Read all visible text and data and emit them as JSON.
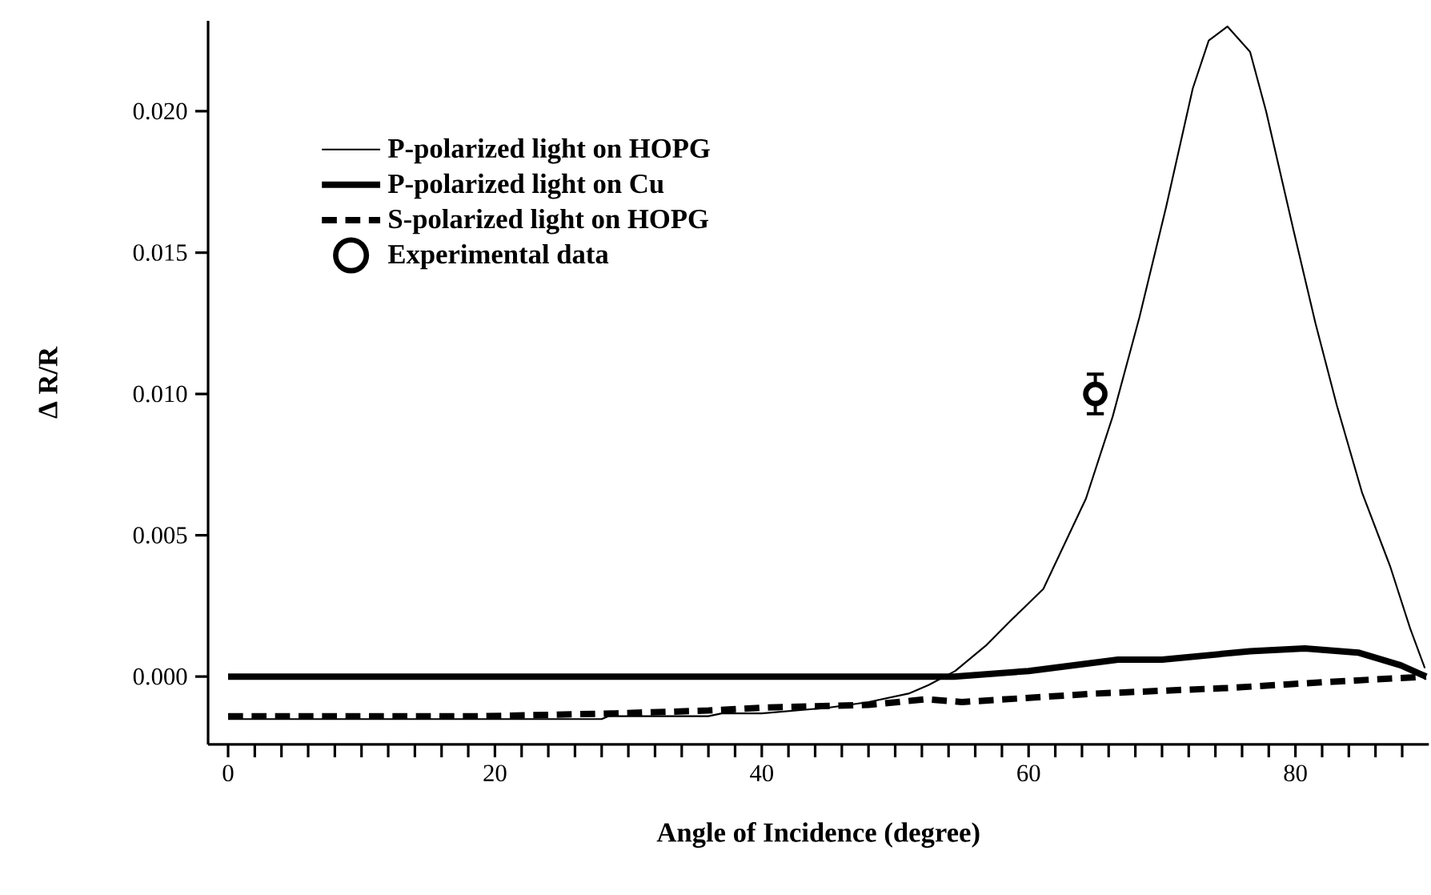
{
  "chart_data": {
    "type": "line",
    "xlabel": "Angle of Incidence (degree)",
    "ylabel": "Δ R/R",
    "xlim": [
      -1.5,
      90
    ],
    "ylim": [
      -0.0024,
      0.0232
    ],
    "xticks": [
      0,
      {
        "value": 2,
        "label": null
      },
      {
        "value": 4,
        "label": null
      },
      {
        "value": 6,
        "label": null
      },
      {
        "value": 8,
        "label": null
      },
      {
        "value": 10,
        "label": null
      },
      {
        "value": 12,
        "label": null
      },
      {
        "value": 14,
        "label": null
      },
      {
        "value": 16,
        "label": null
      },
      {
        "value": 18,
        "label": null
      },
      20,
      {
        "value": 22,
        "label": null
      },
      {
        "value": 24,
        "label": null
      },
      {
        "value": 26,
        "label": null
      },
      {
        "value": 28,
        "label": null
      },
      {
        "value": 30,
        "label": null
      },
      {
        "value": 32,
        "label": null
      },
      {
        "value": 34,
        "label": null
      },
      {
        "value": 36,
        "label": null
      },
      {
        "value": 38,
        "label": null
      },
      40,
      {
        "value": 42,
        "label": null
      },
      {
        "value": 44,
        "label": null
      },
      {
        "value": 46,
        "label": null
      },
      {
        "value": 48,
        "label": null
      },
      {
        "value": 50,
        "label": null
      },
      {
        "value": 52,
        "label": null
      },
      {
        "value": 54,
        "label": null
      },
      {
        "value": 56,
        "label": null
      },
      {
        "value": 58,
        "label": null
      },
      60,
      {
        "value": 62,
        "label": null
      },
      {
        "value": 64,
        "label": null
      },
      {
        "value": 66,
        "label": null
      },
      {
        "value": 68,
        "label": null
      },
      {
        "value": 70,
        "label": null
      },
      {
        "value": 72,
        "label": null
      },
      {
        "value": 74,
        "label": null
      },
      {
        "value": 76,
        "label": null
      },
      {
        "value": 78,
        "label": null
      },
      80,
      {
        "value": 82,
        "label": null
      },
      {
        "value": 84,
        "label": null
      },
      {
        "value": 86,
        "label": null
      },
      {
        "value": 88,
        "label": null
      }
    ],
    "yticks": [
      {
        "value": 0,
        "label": "0.000"
      },
      {
        "value": 0.005,
        "label": "0.005"
      },
      {
        "value": 0.01,
        "label": "0.010"
      },
      {
        "value": 0.015,
        "label": "0.015"
      },
      {
        "value": 0.02,
        "label": "0.020"
      }
    ],
    "legend": "top left",
    "grid": false,
    "series": [
      {
        "name": "P-polarized light on HOPG",
        "color": "#000000",
        "line_style": "solid",
        "x": [
          0,
          28,
          28.5,
          36,
          37,
          40,
          45,
          48,
          51,
          52.5,
          54.5,
          56.8,
          58.7,
          61.1,
          64.3,
          66.3,
          68.3,
          70.3,
          72.3,
          73.5,
          74.9,
          76.6,
          77.8,
          79.9,
          81.5,
          83.1,
          85.0,
          87.1,
          88.6,
          89.7
        ],
        "values": [
          -0.0015,
          -0.0015,
          -0.0014,
          -0.0014,
          -0.0013,
          -0.0013,
          -0.0011,
          -0.0009,
          -0.0006,
          -0.0003,
          0.0002,
          0.0011,
          0.002,
          0.0031,
          0.0063,
          0.0092,
          0.0127,
          0.0166,
          0.0208,
          0.0225,
          0.023,
          0.0221,
          0.02,
          0.0157,
          0.0125,
          0.0096,
          0.0065,
          0.0039,
          0.0017,
          0.0003
        ]
      },
      {
        "name": "P-polarized light on Cu",
        "color": "#000000",
        "line_style": "solid",
        "x": [
          0,
          54.4,
          60,
          66.7,
          70,
          76.6,
          80.7,
          84.7,
          87.9,
          89.8
        ],
        "values": [
          0,
          0,
          0.0002,
          0.0006,
          0.0006,
          0.0009,
          0.001,
          0.00085,
          0.0004,
          0
        ]
      },
      {
        "name": "S-polarized light on HOPG",
        "color": "#000000",
        "line_style": "dashed",
        "x": [
          0,
          19,
          29,
          36,
          40,
          48,
          52.3,
          55,
          65,
          75,
          82,
          89.8
        ],
        "values": [
          -0.0014,
          -0.0014,
          -0.0013,
          -0.0012,
          -0.0011,
          -0.001,
          -0.0008,
          -0.0009,
          -0.0006,
          -0.0004,
          -0.0002,
          0
        ]
      },
      {
        "name": "Experimental data",
        "type": "scatter",
        "color": "#000000",
        "x": [
          65
        ],
        "values": [
          0.01
        ],
        "errors": [
          0.0007
        ]
      }
    ]
  }
}
